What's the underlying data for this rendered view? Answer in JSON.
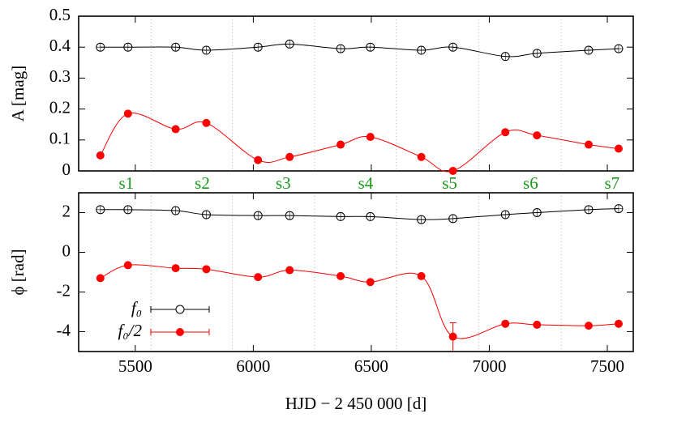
{
  "chart_data": [
    {
      "type": "line",
      "ylabel": "A [mag]",
      "xlim": [
        5260,
        7610
      ],
      "xticks": [
        5500,
        6000,
        6500,
        7000,
        7500
      ],
      "ylim": [
        0,
        0.5
      ],
      "yticks": [
        0,
        0.1,
        0.2,
        0.3,
        0.4,
        0.5
      ],
      "x": [
        5352,
        5469,
        5671,
        5801,
        6020,
        6154,
        6370,
        6496,
        6712,
        6846,
        7068,
        7202,
        7421,
        7548
      ],
      "separators": [
        5568,
        5911,
        6260,
        6606,
        6955,
        7305
      ],
      "annotation_color": "#1a9a1a",
      "annotations": [
        {
          "text": "s1",
          "x": 5462
        },
        {
          "text": "s2",
          "x": 5784
        },
        {
          "text": "s3",
          "x": 6127
        },
        {
          "text": "s4",
          "x": 6476
        },
        {
          "text": "s5",
          "x": 6832
        },
        {
          "text": "s6",
          "x": 7175
        },
        {
          "text": "s7",
          "x": 7520
        }
      ],
      "series": [
        {
          "color": "#000000",
          "marker": "open",
          "values": [
            0.4,
            0.4,
            0.4,
            0.39,
            0.4,
            0.41,
            0.395,
            0.4,
            0.39,
            0.4,
            0.37,
            0.38,
            0.39,
            0.395
          ]
        },
        {
          "color": "#ff0000",
          "marker": "filled",
          "values": [
            0.05,
            0.185,
            0.135,
            0.155,
            0.035,
            0.045,
            0.085,
            0.11,
            0.045,
            0.0,
            0.125,
            0.115,
            0.085,
            0.072
          ]
        }
      ]
    },
    {
      "type": "line",
      "ylabel": "ϕ [rad]",
      "xlabel": "HJD − 2 450 000 [d]",
      "xlim": [
        5260,
        7610
      ],
      "xticks": [
        5500,
        6000,
        6500,
        7000,
        7500
      ],
      "ylim": [
        -5,
        3
      ],
      "yticks": [
        -4,
        -2,
        0,
        2
      ],
      "x": [
        5352,
        5469,
        5671,
        5801,
        6020,
        6154,
        6370,
        6496,
        6712,
        6846,
        7068,
        7202,
        7421,
        7548
      ],
      "separators": [
        5568,
        5911,
        6260,
        6606,
        6955,
        7305
      ],
      "series": [
        {
          "name": "f₀",
          "color": "#000000",
          "marker": "open",
          "values": [
            2.15,
            2.15,
            2.1,
            1.9,
            1.85,
            1.85,
            1.8,
            1.8,
            1.65,
            1.7,
            1.9,
            2.0,
            2.15,
            2.2
          ]
        },
        {
          "name": "f₀/2",
          "color": "#ff0000",
          "marker": "filled",
          "values": [
            -1.3,
            -0.65,
            -0.8,
            -0.85,
            -1.25,
            -0.9,
            -1.2,
            -1.5,
            -1.2,
            -4.25,
            -3.6,
            -3.65,
            -3.7,
            -3.6
          ],
          "errors": [
            null,
            null,
            null,
            null,
            null,
            null,
            null,
            null,
            null,
            0.7,
            null,
            null,
            null,
            null
          ]
        }
      ]
    }
  ]
}
